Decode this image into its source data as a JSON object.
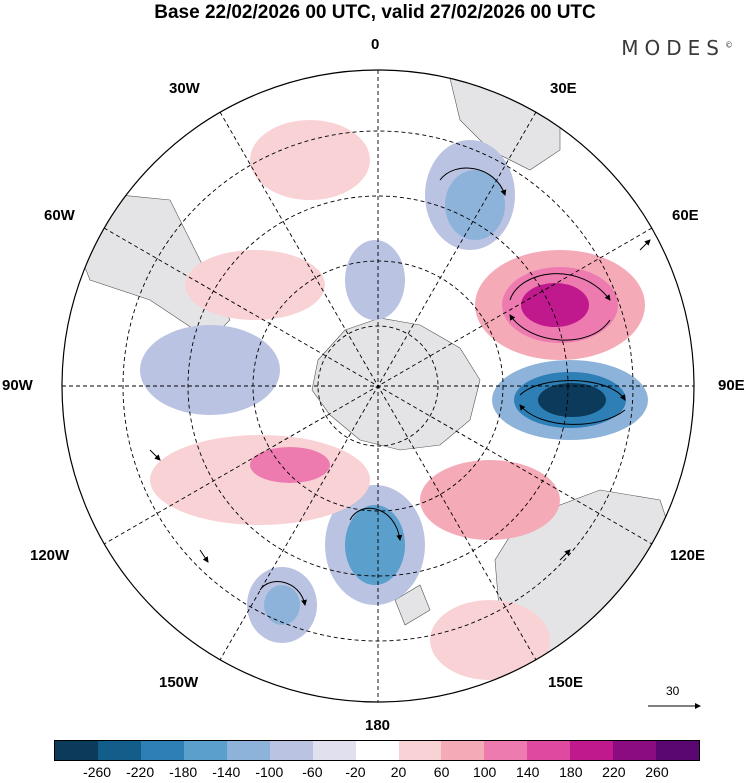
{
  "title": "Base 22/02/2026 00 UTC, valid 27/02/2026 00 UTC",
  "brand": "MODES",
  "brand_mark": "©",
  "longitude_labels": {
    "top": "0",
    "bottom": "180",
    "left": "90W",
    "right": "90E",
    "w30": "30W",
    "e30": "30E",
    "w60": "60W",
    "e60": "60E",
    "w120": "120W",
    "e120": "120E",
    "w150": "150W",
    "e150": "150E"
  },
  "vector_reference": "30",
  "colorbar": {
    "ticks": [
      "-260",
      "-220",
      "-180",
      "-140",
      "-100",
      "-60",
      "-20",
      "20",
      "60",
      "100",
      "140",
      "180",
      "220",
      "260"
    ],
    "colors": [
      "#0b3a5a",
      "#135d8a",
      "#2d7fb6",
      "#5b9fcc",
      "#8eb3da",
      "#bbc3e2",
      "#e1e0ef",
      "#ffffff",
      "#f9d2d6",
      "#f5aab8",
      "#ee7bb0",
      "#df4aa0",
      "#c0198d",
      "#8a0c80",
      "#5b0771"
    ]
  }
}
